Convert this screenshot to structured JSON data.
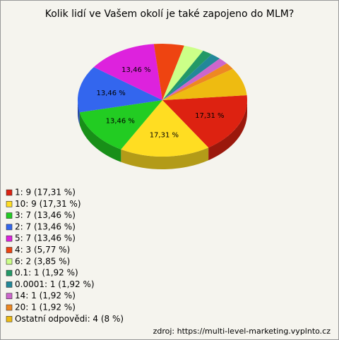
{
  "chart_data": {
    "type": "pie3d",
    "title": "Kolik lidí ve Vašem okolí je také zapojeno do MLM?",
    "categories": [
      "1: 9 (17,31 %)",
      "10: 9 (17,31 %)",
      "3: 7 (13,46 %)",
      "2: 7 (13,46 %)",
      "5: 7 (13,46 %)",
      "4: 3 (5,77 %)",
      "6: 2 (3,85 %)",
      "0.1: 1 (1,92 %)",
      "0.0001: 1 (1,92 %)",
      "14: 1 (1,92 %)",
      "20: 1 (1,92 %)",
      "Ostatní odpovědi: 4 (8 %)"
    ],
    "values": [
      17.31,
      17.31,
      13.46,
      13.46,
      13.46,
      5.77,
      3.85,
      1.92,
      1.92,
      1.92,
      1.92,
      8
    ],
    "value_labels": [
      "17,31 %",
      "17,31 %",
      "13,46 %",
      "13,46 %",
      "13,46 %",
      null,
      null,
      null,
      null,
      null,
      null,
      null
    ],
    "colors": [
      "#dd2211",
      "#ffdd22",
      "#22cc22",
      "#3366ee",
      "#dd22dd",
      "#ee4411",
      "#ccff88",
      "#229966",
      "#228899",
      "#cc66cc",
      "#ee8822",
      "#eebb11"
    ],
    "source": "zdroj: https://multi-level-marketing.vyplnto.cz"
  }
}
